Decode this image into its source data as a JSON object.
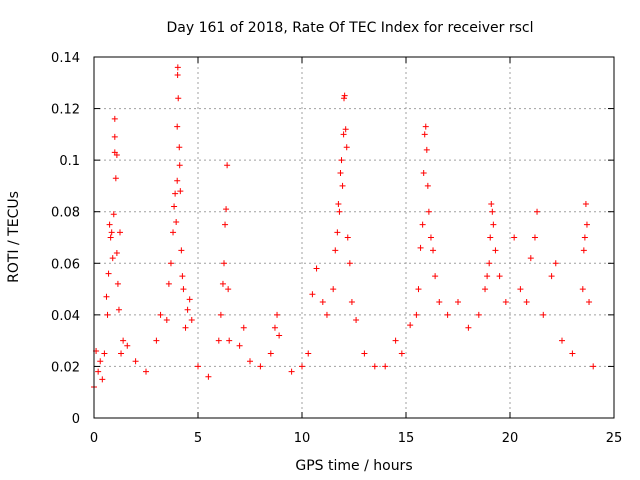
{
  "chart_data": {
    "type": "scatter",
    "title": "Day 161 of 2018, Rate Of TEC Index for receiver rscl",
    "xlabel": "GPS time / hours",
    "ylabel": "ROTI / TECUs",
    "xlim": [
      0,
      25
    ],
    "ylim": [
      0,
      0.14
    ],
    "xticks": [
      0,
      5,
      10,
      15,
      20,
      25
    ],
    "yticks": [
      0,
      0.02,
      0.04,
      0.06,
      0.08,
      0.1,
      0.12,
      0.14
    ],
    "xtick_labels": [
      "0",
      "5",
      "10",
      "15",
      "20",
      "25"
    ],
    "ytick_labels": [
      "0",
      "0.02",
      "0.04",
      "0.06",
      "0.08",
      "0.1",
      "0.12",
      "0.14"
    ],
    "grid": true,
    "marker": "+",
    "marker_color": "#ff0000",
    "series": [
      {
        "name": "ROTI",
        "points": [
          [
            0.0,
            0.012
          ],
          [
            0.1,
            0.026
          ],
          [
            0.2,
            0.018
          ],
          [
            0.3,
            0.022
          ],
          [
            0.4,
            0.015
          ],
          [
            0.5,
            0.025
          ],
          [
            0.6,
            0.047
          ],
          [
            0.65,
            0.04
          ],
          [
            0.7,
            0.056
          ],
          [
            0.75,
            0.075
          ],
          [
            0.8,
            0.07
          ],
          [
            0.85,
            0.072
          ],
          [
            0.9,
            0.062
          ],
          [
            0.95,
            0.079
          ],
          [
            1.0,
            0.103
          ],
          [
            1.0,
            0.109
          ],
          [
            1.0,
            0.116
          ],
          [
            1.05,
            0.093
          ],
          [
            1.1,
            0.064
          ],
          [
            1.1,
            0.102
          ],
          [
            1.15,
            0.052
          ],
          [
            1.2,
            0.042
          ],
          [
            1.25,
            0.072
          ],
          [
            1.3,
            0.025
          ],
          [
            1.4,
            0.03
          ],
          [
            1.6,
            0.028
          ],
          [
            2.0,
            0.022
          ],
          [
            2.5,
            0.018
          ],
          [
            3.0,
            0.03
          ],
          [
            3.2,
            0.04
          ],
          [
            3.5,
            0.038
          ],
          [
            3.6,
            0.052
          ],
          [
            3.7,
            0.06
          ],
          [
            3.8,
            0.072
          ],
          [
            3.85,
            0.082
          ],
          [
            3.9,
            0.087
          ],
          [
            3.95,
            0.076
          ],
          [
            4.0,
            0.092
          ],
          [
            4.0,
            0.113
          ],
          [
            4.02,
            0.133
          ],
          [
            4.03,
            0.136
          ],
          [
            4.05,
            0.124
          ],
          [
            4.1,
            0.105
          ],
          [
            4.12,
            0.098
          ],
          [
            4.15,
            0.088
          ],
          [
            4.2,
            0.065
          ],
          [
            4.25,
            0.055
          ],
          [
            4.3,
            0.05
          ],
          [
            4.4,
            0.035
          ],
          [
            4.5,
            0.042
          ],
          [
            4.6,
            0.046
          ],
          [
            4.7,
            0.038
          ],
          [
            5.0,
            0.02
          ],
          [
            5.5,
            0.016
          ],
          [
            6.0,
            0.03
          ],
          [
            6.1,
            0.04
          ],
          [
            6.2,
            0.052
          ],
          [
            6.25,
            0.06
          ],
          [
            6.3,
            0.075
          ],
          [
            6.35,
            0.081
          ],
          [
            6.4,
            0.098
          ],
          [
            6.45,
            0.05
          ],
          [
            6.5,
            0.03
          ],
          [
            7.0,
            0.028
          ],
          [
            7.2,
            0.035
          ],
          [
            7.5,
            0.022
          ],
          [
            8.0,
            0.02
          ],
          [
            8.5,
            0.025
          ],
          [
            8.7,
            0.035
          ],
          [
            8.8,
            0.04
          ],
          [
            8.9,
            0.032
          ],
          [
            9.5,
            0.018
          ],
          [
            10.0,
            0.02
          ],
          [
            10.3,
            0.025
          ],
          [
            10.5,
            0.048
          ],
          [
            10.7,
            0.058
          ],
          [
            11.0,
            0.045
          ],
          [
            11.2,
            0.04
          ],
          [
            11.5,
            0.05
          ],
          [
            11.6,
            0.065
          ],
          [
            11.7,
            0.072
          ],
          [
            11.75,
            0.083
          ],
          [
            11.8,
            0.08
          ],
          [
            11.85,
            0.095
          ],
          [
            11.9,
            0.1
          ],
          [
            11.95,
            0.09
          ],
          [
            12.0,
            0.11
          ],
          [
            12.02,
            0.124
          ],
          [
            12.05,
            0.125
          ],
          [
            12.1,
            0.112
          ],
          [
            12.15,
            0.105
          ],
          [
            12.2,
            0.07
          ],
          [
            12.3,
            0.06
          ],
          [
            12.4,
            0.045
          ],
          [
            12.6,
            0.038
          ],
          [
            13.0,
            0.025
          ],
          [
            13.5,
            0.02
          ],
          [
            14.0,
            0.02
          ],
          [
            14.5,
            0.03
          ],
          [
            14.8,
            0.025
          ],
          [
            15.2,
            0.036
          ],
          [
            15.5,
            0.04
          ],
          [
            15.6,
            0.05
          ],
          [
            15.7,
            0.066
          ],
          [
            15.8,
            0.075
          ],
          [
            15.85,
            0.095
          ],
          [
            15.9,
            0.11
          ],
          [
            15.95,
            0.113
          ],
          [
            16.0,
            0.104
          ],
          [
            16.05,
            0.09
          ],
          [
            16.1,
            0.08
          ],
          [
            16.2,
            0.07
          ],
          [
            16.3,
            0.065
          ],
          [
            16.4,
            0.055
          ],
          [
            16.6,
            0.045
          ],
          [
            17.0,
            0.04
          ],
          [
            17.5,
            0.045
          ],
          [
            18.0,
            0.035
          ],
          [
            18.5,
            0.04
          ],
          [
            18.8,
            0.05
          ],
          [
            18.9,
            0.055
          ],
          [
            19.0,
            0.06
          ],
          [
            19.05,
            0.07
          ],
          [
            19.1,
            0.083
          ],
          [
            19.15,
            0.08
          ],
          [
            19.2,
            0.075
          ],
          [
            19.3,
            0.065
          ],
          [
            19.5,
            0.055
          ],
          [
            19.8,
            0.045
          ],
          [
            20.2,
            0.07
          ],
          [
            20.5,
            0.05
          ],
          [
            20.8,
            0.045
          ],
          [
            21.0,
            0.062
          ],
          [
            21.2,
            0.07
          ],
          [
            21.3,
            0.08
          ],
          [
            21.6,
            0.04
          ],
          [
            22.0,
            0.055
          ],
          [
            22.2,
            0.06
          ],
          [
            22.5,
            0.03
          ],
          [
            23.0,
            0.025
          ],
          [
            23.5,
            0.05
          ],
          [
            23.55,
            0.065
          ],
          [
            23.6,
            0.07
          ],
          [
            23.65,
            0.083
          ],
          [
            23.7,
            0.075
          ],
          [
            23.8,
            0.045
          ],
          [
            24.0,
            0.02
          ]
        ]
      }
    ]
  }
}
